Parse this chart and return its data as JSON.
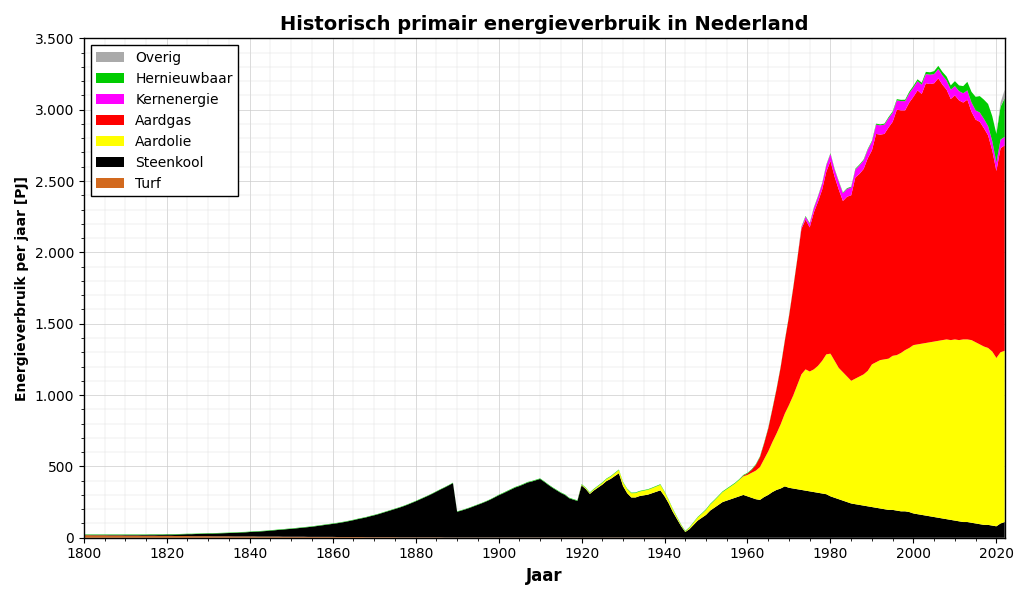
{
  "title": "Historisch primair energieverbruik in Nederland",
  "xlabel": "Jaar",
  "ylabel": "Energieverbruik per jaar [PJ]",
  "ylim": [
    0,
    3500
  ],
  "xlim": [
    1800,
    2022
  ],
  "yticks": [
    0,
    500,
    1000,
    1500,
    2000,
    2500,
    3000,
    3500
  ],
  "ytick_labels": [
    "0",
    "500",
    "1.000",
    "1.500",
    "2.000",
    "2.500",
    "3.000",
    "3.500"
  ],
  "xticks": [
    1800,
    1820,
    1840,
    1860,
    1880,
    1900,
    1920,
    1940,
    1960,
    1980,
    2000,
    2020
  ],
  "colors": {
    "Turf": "#D2691E",
    "Steenkool": "#000000",
    "Aardolie": "#FFFF00",
    "Aardgas": "#FF0000",
    "Kernenergie": "#FF00FF",
    "Hernieuwbaar": "#00CC00",
    "Overig": "#AAAAAA"
  },
  "legend_order": [
    "Overig",
    "Hernieuwbaar",
    "Kernenergie",
    "Aardgas",
    "Aardolie",
    "Steenkool",
    "Turf"
  ],
  "years": [
    1800,
    1801,
    1802,
    1803,
    1804,
    1805,
    1806,
    1807,
    1808,
    1809,
    1810,
    1811,
    1812,
    1813,
    1814,
    1815,
    1816,
    1817,
    1818,
    1819,
    1820,
    1821,
    1822,
    1823,
    1824,
    1825,
    1826,
    1827,
    1828,
    1829,
    1830,
    1831,
    1832,
    1833,
    1834,
    1835,
    1836,
    1837,
    1838,
    1839,
    1840,
    1841,
    1842,
    1843,
    1844,
    1845,
    1846,
    1847,
    1848,
    1849,
    1850,
    1851,
    1852,
    1853,
    1854,
    1855,
    1856,
    1857,
    1858,
    1859,
    1860,
    1861,
    1862,
    1863,
    1864,
    1865,
    1866,
    1867,
    1868,
    1869,
    1870,
    1871,
    1872,
    1873,
    1874,
    1875,
    1876,
    1877,
    1878,
    1879,
    1880,
    1881,
    1882,
    1883,
    1884,
    1885,
    1886,
    1887,
    1888,
    1889,
    1890,
    1891,
    1892,
    1893,
    1894,
    1895,
    1896,
    1897,
    1898,
    1899,
    1900,
    1901,
    1902,
    1903,
    1904,
    1905,
    1906,
    1907,
    1908,
    1909,
    1910,
    1911,
    1912,
    1913,
    1914,
    1915,
    1916,
    1917,
    1918,
    1919,
    1920,
    1921,
    1922,
    1923,
    1924,
    1925,
    1926,
    1927,
    1928,
    1929,
    1930,
    1931,
    1932,
    1933,
    1934,
    1935,
    1936,
    1937,
    1938,
    1939,
    1940,
    1941,
    1942,
    1943,
    1944,
    1945,
    1946,
    1947,
    1948,
    1949,
    1950,
    1951,
    1952,
    1953,
    1954,
    1955,
    1956,
    1957,
    1958,
    1959,
    1960,
    1961,
    1962,
    1963,
    1964,
    1965,
    1966,
    1967,
    1968,
    1969,
    1970,
    1971,
    1972,
    1973,
    1974,
    1975,
    1976,
    1977,
    1978,
    1979,
    1980,
    1981,
    1982,
    1983,
    1984,
    1985,
    1986,
    1987,
    1988,
    1989,
    1990,
    1991,
    1992,
    1993,
    1994,
    1995,
    1996,
    1997,
    1998,
    1999,
    2000,
    2001,
    2002,
    2003,
    2004,
    2005,
    2006,
    2007,
    2008,
    2009,
    2010,
    2011,
    2012,
    2013,
    2014,
    2015,
    2016,
    2017,
    2018,
    2019,
    2020,
    2021,
    2022
  ],
  "Turf": [
    18,
    18,
    17,
    17,
    17,
    17,
    16,
    16,
    16,
    16,
    15,
    15,
    15,
    15,
    14,
    14,
    14,
    14,
    13,
    13,
    13,
    13,
    12,
    12,
    12,
    12,
    11,
    11,
    11,
    11,
    11,
    10,
    10,
    10,
    10,
    10,
    9,
    9,
    9,
    9,
    9,
    9,
    8,
    8,
    8,
    8,
    8,
    8,
    7,
    7,
    7,
    7,
    7,
    7,
    6,
    6,
    6,
    6,
    6,
    6,
    6,
    5,
    5,
    5,
    5,
    5,
    5,
    5,
    4,
    4,
    4,
    4,
    4,
    4,
    4,
    4,
    3,
    3,
    3,
    3,
    3,
    3,
    3,
    3,
    3,
    3,
    3,
    2,
    2,
    2,
    2,
    2,
    2,
    2,
    2,
    2,
    2,
    2,
    2,
    2,
    2,
    2,
    2,
    2,
    2,
    2,
    2,
    2,
    2,
    2,
    2,
    2,
    2,
    2,
    2,
    2,
    2,
    2,
    2,
    2,
    2,
    2,
    2,
    2,
    2,
    2,
    2,
    2,
    2,
    2,
    2,
    2,
    2,
    2,
    2,
    2,
    2,
    2,
    2,
    2,
    1,
    1,
    1,
    1,
    1,
    0,
    0,
    0,
    0,
    0,
    0,
    0,
    0,
    0,
    0,
    0,
    0,
    0,
    0,
    0,
    0,
    0,
    0,
    0,
    0,
    0,
    0,
    0,
    0,
    0,
    0,
    0,
    0,
    0,
    0,
    0,
    0,
    0,
    0,
    0,
    0,
    0,
    0,
    0,
    0,
    0,
    0,
    0,
    0,
    0,
    0,
    0,
    0,
    0,
    0,
    0,
    0,
    0,
    0,
    0,
    0,
    0,
    0,
    0,
    0,
    0,
    0,
    0,
    0,
    0,
    0,
    0,
    0,
    0,
    0,
    0,
    0,
    0,
    0,
    0,
    0,
    0,
    0
  ],
  "Steenkool": [
    2,
    2,
    3,
    3,
    3,
    3,
    4,
    4,
    4,
    4,
    5,
    5,
    5,
    5,
    6,
    6,
    7,
    7,
    8,
    8,
    9,
    9,
    10,
    11,
    12,
    13,
    14,
    15,
    16,
    17,
    18,
    19,
    20,
    21,
    22,
    23,
    25,
    26,
    28,
    29,
    31,
    33,
    35,
    37,
    39,
    42,
    44,
    47,
    50,
    53,
    55,
    58,
    61,
    64,
    68,
    71,
    75,
    79,
    83,
    87,
    91,
    96,
    101,
    106,
    112,
    118,
    125,
    131,
    138,
    146,
    153,
    161,
    170,
    179,
    188,
    197,
    207,
    217,
    228,
    240,
    252,
    265,
    278,
    291,
    305,
    320,
    335,
    350,
    365,
    381,
    180,
    188,
    197,
    207,
    218,
    229,
    240,
    252,
    265,
    280,
    295,
    308,
    322,
    336,
    350,
    360,
    372,
    385,
    392,
    401,
    410,
    390,
    368,
    348,
    330,
    312,
    298,
    275,
    265,
    256,
    365,
    340,
    305,
    330,
    350,
    370,
    395,
    410,
    430,
    450,
    360,
    310,
    280,
    280,
    290,
    295,
    300,
    310,
    320,
    330,
    290,
    240,
    180,
    130,
    80,
    40,
    60,
    90,
    120,
    140,
    160,
    190,
    210,
    230,
    250,
    260,
    270,
    280,
    290,
    300,
    290,
    280,
    270,
    265,
    285,
    300,
    320,
    335,
    345,
    360,
    350,
    345,
    340,
    335,
    330,
    325,
    320,
    315,
    310,
    305,
    290,
    280,
    270,
    260,
    250,
    240,
    235,
    230,
    225,
    220,
    215,
    210,
    205,
    200,
    195,
    195,
    190,
    185,
    185,
    180,
    170,
    165,
    160,
    155,
    150,
    145,
    140,
    135,
    130,
    125,
    120,
    115,
    110,
    110,
    105,
    100,
    95,
    90,
    90,
    85,
    80,
    100,
    110
  ],
  "Aardolie": [
    0,
    0,
    0,
    0,
    0,
    0,
    0,
    0,
    0,
    0,
    0,
    0,
    0,
    0,
    0,
    0,
    0,
    0,
    0,
    0,
    0,
    0,
    0,
    0,
    0,
    0,
    0,
    0,
    0,
    0,
    0,
    0,
    0,
    0,
    0,
    0,
    0,
    0,
    0,
    0,
    0,
    0,
    0,
    0,
    0,
    0,
    0,
    0,
    0,
    0,
    0,
    0,
    0,
    0,
    0,
    0,
    0,
    0,
    0,
    0,
    0,
    0,
    0,
    0,
    0,
    0,
    0,
    0,
    0,
    0,
    0,
    0,
    0,
    0,
    0,
    0,
    0,
    0,
    0,
    0,
    0,
    0,
    0,
    0,
    0,
    0,
    0,
    0,
    0,
    0,
    0,
    0,
    0,
    0,
    0,
    0,
    0,
    0,
    0,
    0,
    0,
    0,
    0,
    0,
    0,
    0,
    0,
    0,
    0,
    0,
    0,
    0,
    0,
    0,
    0,
    0,
    0,
    0,
    0,
    0,
    5,
    6,
    7,
    8,
    10,
    12,
    14,
    16,
    19,
    22,
    25,
    28,
    30,
    31,
    32,
    33,
    34,
    35,
    37,
    39,
    30,
    22,
    18,
    13,
    8,
    4,
    10,
    16,
    22,
    28,
    35,
    42,
    50,
    60,
    70,
    80,
    90,
    100,
    115,
    130,
    150,
    175,
    200,
    230,
    265,
    305,
    350,
    395,
    450,
    510,
    580,
    650,
    730,
    810,
    850,
    840,
    860,
    890,
    930,
    980,
    1000,
    960,
    920,
    900,
    880,
    860,
    880,
    900,
    920,
    950,
    1000,
    1020,
    1040,
    1050,
    1060,
    1080,
    1090,
    1110,
    1130,
    1150,
    1180,
    1190,
    1200,
    1210,
    1220,
    1230,
    1240,
    1250,
    1260,
    1260,
    1270,
    1270,
    1280,
    1280,
    1280,
    1270,
    1260,
    1250,
    1240,
    1220,
    1180,
    1200,
    1200
  ],
  "Aardgas": [
    0,
    0,
    0,
    0,
    0,
    0,
    0,
    0,
    0,
    0,
    0,
    0,
    0,
    0,
    0,
    0,
    0,
    0,
    0,
    0,
    0,
    0,
    0,
    0,
    0,
    0,
    0,
    0,
    0,
    0,
    0,
    0,
    0,
    0,
    0,
    0,
    0,
    0,
    0,
    0,
    0,
    0,
    0,
    0,
    0,
    0,
    0,
    0,
    0,
    0,
    0,
    0,
    0,
    0,
    0,
    0,
    0,
    0,
    0,
    0,
    0,
    0,
    0,
    0,
    0,
    0,
    0,
    0,
    0,
    0,
    0,
    0,
    0,
    0,
    0,
    0,
    0,
    0,
    0,
    0,
    0,
    0,
    0,
    0,
    0,
    0,
    0,
    0,
    0,
    0,
    0,
    0,
    0,
    0,
    0,
    0,
    0,
    0,
    0,
    0,
    0,
    0,
    0,
    0,
    0,
    0,
    0,
    0,
    0,
    0,
    0,
    0,
    0,
    0,
    0,
    0,
    0,
    0,
    0,
    0,
    0,
    0,
    0,
    0,
    0,
    0,
    0,
    0,
    0,
    0,
    0,
    0,
    0,
    0,
    0,
    0,
    0,
    0,
    0,
    0,
    0,
    0,
    0,
    0,
    0,
    0,
    0,
    0,
    0,
    0,
    0,
    0,
    0,
    0,
    0,
    0,
    0,
    0,
    0,
    5,
    10,
    20,
    40,
    70,
    110,
    160,
    230,
    310,
    400,
    510,
    620,
    750,
    880,
    1020,
    1050,
    1010,
    1100,
    1150,
    1200,
    1280,
    1350,
    1290,
    1250,
    1200,
    1260,
    1300,
    1410,
    1420,
    1440,
    1490,
    1500,
    1600,
    1580,
    1580,
    1620,
    1640,
    1720,
    1700,
    1680,
    1720,
    1740,
    1780,
    1750,
    1820,
    1810,
    1810,
    1840,
    1790,
    1750,
    1690,
    1710,
    1680,
    1660,
    1680,
    1600,
    1560,
    1560,
    1530,
    1490,
    1410,
    1310,
    1430,
    1440
  ],
  "Kernenergie": [
    0,
    0,
    0,
    0,
    0,
    0,
    0,
    0,
    0,
    0,
    0,
    0,
    0,
    0,
    0,
    0,
    0,
    0,
    0,
    0,
    0,
    0,
    0,
    0,
    0,
    0,
    0,
    0,
    0,
    0,
    0,
    0,
    0,
    0,
    0,
    0,
    0,
    0,
    0,
    0,
    0,
    0,
    0,
    0,
    0,
    0,
    0,
    0,
    0,
    0,
    0,
    0,
    0,
    0,
    0,
    0,
    0,
    0,
    0,
    0,
    0,
    0,
    0,
    0,
    0,
    0,
    0,
    0,
    0,
    0,
    0,
    0,
    0,
    0,
    0,
    0,
    0,
    0,
    0,
    0,
    0,
    0,
    0,
    0,
    0,
    0,
    0,
    0,
    0,
    0,
    0,
    0,
    0,
    0,
    0,
    0,
    0,
    0,
    0,
    0,
    0,
    0,
    0,
    0,
    0,
    0,
    0,
    0,
    0,
    0,
    0,
    0,
    0,
    0,
    0,
    0,
    0,
    0,
    0,
    0,
    0,
    0,
    0,
    0,
    0,
    0,
    0,
    0,
    0,
    0,
    0,
    0,
    0,
    0,
    0,
    0,
    0,
    0,
    0,
    0,
    0,
    0,
    0,
    0,
    0,
    0,
    0,
    0,
    0,
    0,
    0,
    0,
    0,
    0,
    0,
    0,
    0,
    0,
    0,
    0,
    0,
    0,
    0,
    0,
    0,
    0,
    0,
    0,
    0,
    0,
    0,
    0,
    0,
    10,
    20,
    25,
    30,
    35,
    40,
    45,
    50,
    50,
    55,
    55,
    55,
    55,
    55,
    60,
    60,
    60,
    60,
    65,
    65,
    65,
    65,
    65,
    65,
    65,
    65,
    65,
    65,
    65,
    65,
    65,
    65,
    65,
    65,
    65,
    65,
    65,
    65,
    65,
    65,
    65,
    65,
    65,
    65,
    65,
    65,
    65,
    60,
    60,
    60
  ],
  "Hernieuwbaar": [
    3,
    3,
    3,
    3,
    3,
    3,
    3,
    3,
    3,
    3,
    3,
    3,
    3,
    3,
    3,
    3,
    3,
    3,
    3,
    3,
    3,
    3,
    3,
    3,
    3,
    3,
    3,
    3,
    3,
    3,
    3,
    3,
    3,
    3,
    3,
    3,
    3,
    3,
    3,
    3,
    3,
    3,
    3,
    3,
    3,
    3,
    3,
    3,
    3,
    3,
    3,
    3,
    3,
    3,
    3,
    3,
    3,
    3,
    3,
    3,
    3,
    3,
    3,
    3,
    3,
    3,
    3,
    3,
    3,
    3,
    3,
    3,
    3,
    3,
    3,
    3,
    3,
    3,
    3,
    3,
    3,
    3,
    3,
    3,
    3,
    3,
    3,
    3,
    3,
    3,
    3,
    3,
    3,
    3,
    3,
    3,
    3,
    3,
    3,
    3,
    4,
    4,
    4,
    4,
    4,
    4,
    4,
    4,
    4,
    4,
    4,
    4,
    4,
    4,
    4,
    4,
    4,
    4,
    4,
    4,
    4,
    4,
    4,
    4,
    4,
    4,
    4,
    4,
    4,
    4,
    4,
    4,
    4,
    4,
    4,
    4,
    4,
    4,
    4,
    4,
    4,
    4,
    4,
    4,
    4,
    4,
    4,
    4,
    4,
    4,
    5,
    5,
    5,
    5,
    5,
    5,
    5,
    5,
    5,
    5,
    5,
    5,
    5,
    5,
    5,
    5,
    5,
    5,
    5,
    5,
    5,
    5,
    5,
    5,
    5,
    5,
    5,
    5,
    5,
    5,
    5,
    5,
    5,
    5,
    5,
    5,
    6,
    6,
    6,
    6,
    7,
    7,
    7,
    7,
    8,
    8,
    9,
    9,
    10,
    11,
    12,
    13,
    14,
    15,
    17,
    20,
    22,
    25,
    27,
    30,
    35,
    40,
    50,
    60,
    75,
    95,
    115,
    135,
    155,
    175,
    200,
    230,
    270
  ],
  "Overig": [
    0,
    0,
    0,
    0,
    0,
    0,
    0,
    0,
    0,
    0,
    0,
    0,
    0,
    0,
    0,
    0,
    0,
    0,
    0,
    0,
    0,
    0,
    0,
    0,
    0,
    0,
    0,
    0,
    0,
    0,
    0,
    0,
    0,
    0,
    0,
    0,
    0,
    0,
    0,
    0,
    0,
    0,
    0,
    0,
    0,
    0,
    0,
    0,
    0,
    0,
    0,
    0,
    0,
    0,
    0,
    0,
    0,
    0,
    0,
    0,
    0,
    0,
    0,
    0,
    0,
    0,
    0,
    0,
    0,
    0,
    0,
    0,
    0,
    0,
    0,
    0,
    0,
    0,
    0,
    0,
    0,
    0,
    0,
    0,
    0,
    0,
    0,
    0,
    0,
    0,
    0,
    0,
    0,
    0,
    0,
    0,
    0,
    0,
    0,
    0,
    0,
    0,
    0,
    0,
    0,
    0,
    0,
    0,
    0,
    0,
    0,
    0,
    0,
    0,
    0,
    0,
    0,
    0,
    0,
    0,
    0,
    0,
    0,
    0,
    0,
    0,
    0,
    0,
    0,
    0,
    0,
    0,
    0,
    0,
    0,
    0,
    0,
    0,
    0,
    0,
    0,
    0,
    0,
    0,
    0,
    0,
    0,
    0,
    0,
    0,
    0,
    0,
    0,
    0,
    0,
    0,
    0,
    0,
    0,
    0,
    0,
    0,
    0,
    0,
    0,
    0,
    0,
    0,
    0,
    0,
    0,
    0,
    0,
    0,
    0,
    0,
    0,
    0,
    0,
    0,
    0,
    0,
    0,
    0,
    0,
    0,
    0,
    0,
    0,
    0,
    0,
    0,
    0,
    0,
    0,
    0,
    0,
    0,
    0,
    0,
    0,
    0,
    0,
    0,
    0,
    0,
    0,
    0,
    0,
    0,
    0,
    0,
    0,
    0,
    0,
    0,
    0,
    0,
    0,
    0,
    0,
    30,
    60
  ]
}
